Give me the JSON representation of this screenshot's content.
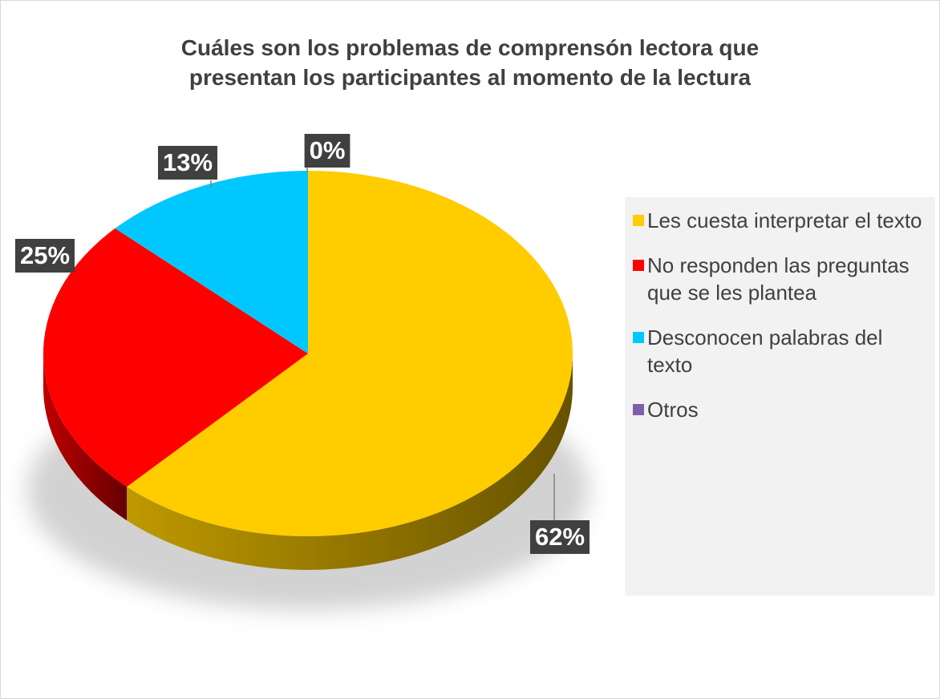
{
  "chart_data": {
    "type": "pie",
    "title": "Cuáles son los problemas de comprensón lectora que presentan los participantes al momento de la lectura",
    "categories": [
      "Les cuesta interpretar el texto",
      "No responden las preguntas que se les plantea",
      "Desconocen palabras del texto",
      "Otros"
    ],
    "values": [
      62,
      25,
      13,
      0
    ],
    "value_labels": [
      "62%",
      "25%",
      "13%",
      "0%"
    ],
    "colors": [
      "#ffcc00",
      "#ff0000",
      "#00c8ff",
      "#7f5fa8"
    ],
    "legend": "right"
  }
}
